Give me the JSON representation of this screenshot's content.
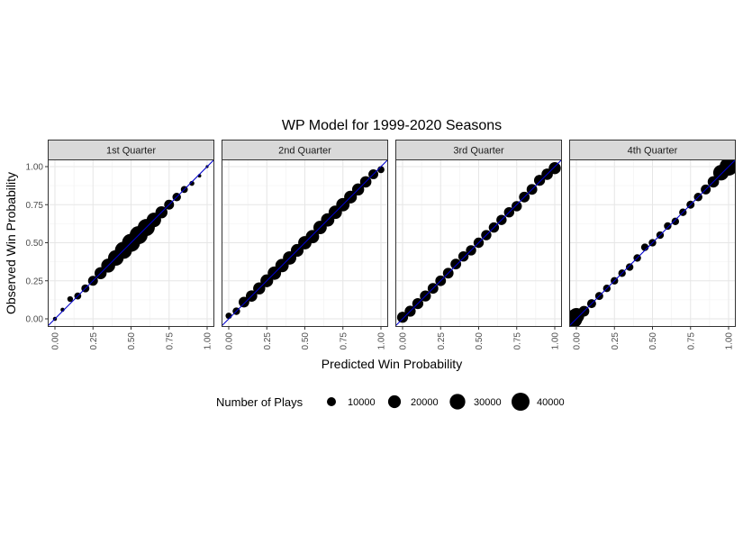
{
  "chart_data": {
    "type": "scatter",
    "title": "WP Model for 1999-2020 Seasons",
    "xlabel": "Predicted Win Probability",
    "ylabel": "Observed Win Probability",
    "xlim": [
      0,
      1
    ],
    "ylim": [
      0,
      1
    ],
    "x_ticks": [
      "0.00",
      "0.25",
      "0.50",
      "0.75",
      "1.00"
    ],
    "y_ticks": [
      "0.00",
      "0.25",
      "0.50",
      "0.75",
      "1.00"
    ],
    "grid": true,
    "reference_line": "y = x",
    "reference_line_color": "#0000cc",
    "point_color": "#000000",
    "legend": {
      "title": "Number of Plays",
      "placement": "bottom",
      "entries": [
        {
          "label": "10000",
          "value": 10000
        },
        {
          "label": "20000",
          "value": 20000
        },
        {
          "label": "30000",
          "value": 30000
        },
        {
          "label": "40000",
          "value": 40000
        }
      ]
    },
    "facets": [
      {
        "label": "1st Quarter",
        "points": [
          {
            "x": 0.0,
            "y": 0.0,
            "n": 2000
          },
          {
            "x": 0.05,
            "y": 0.06,
            "n": 2000
          },
          {
            "x": 0.1,
            "y": 0.13,
            "n": 4000
          },
          {
            "x": 0.15,
            "y": 0.15,
            "n": 6000
          },
          {
            "x": 0.2,
            "y": 0.2,
            "n": 8000
          },
          {
            "x": 0.25,
            "y": 0.25,
            "n": 12000
          },
          {
            "x": 0.3,
            "y": 0.3,
            "n": 18000
          },
          {
            "x": 0.35,
            "y": 0.35,
            "n": 24000
          },
          {
            "x": 0.4,
            "y": 0.4,
            "n": 30000
          },
          {
            "x": 0.45,
            "y": 0.45,
            "n": 36000
          },
          {
            "x": 0.5,
            "y": 0.5,
            "n": 40000
          },
          {
            "x": 0.55,
            "y": 0.55,
            "n": 40000
          },
          {
            "x": 0.6,
            "y": 0.6,
            "n": 36000
          },
          {
            "x": 0.65,
            "y": 0.65,
            "n": 26000
          },
          {
            "x": 0.7,
            "y": 0.7,
            "n": 18000
          },
          {
            "x": 0.75,
            "y": 0.75,
            "n": 12000
          },
          {
            "x": 0.8,
            "y": 0.8,
            "n": 9000
          },
          {
            "x": 0.85,
            "y": 0.85,
            "n": 6000
          },
          {
            "x": 0.9,
            "y": 0.89,
            "n": 3000
          },
          {
            "x": 0.95,
            "y": 0.94,
            "n": 1500
          },
          {
            "x": 1.0,
            "y": 1.0,
            "n": 1000
          }
        ]
      },
      {
        "label": "2nd Quarter",
        "points": [
          {
            "x": 0.0,
            "y": 0.02,
            "n": 5000
          },
          {
            "x": 0.05,
            "y": 0.05,
            "n": 7000
          },
          {
            "x": 0.1,
            "y": 0.11,
            "n": 14000
          },
          {
            "x": 0.15,
            "y": 0.15,
            "n": 16000
          },
          {
            "x": 0.2,
            "y": 0.2,
            "n": 18000
          },
          {
            "x": 0.25,
            "y": 0.25,
            "n": 20000
          },
          {
            "x": 0.3,
            "y": 0.3,
            "n": 22000
          },
          {
            "x": 0.35,
            "y": 0.35,
            "n": 22000
          },
          {
            "x": 0.4,
            "y": 0.4,
            "n": 22000
          },
          {
            "x": 0.45,
            "y": 0.45,
            "n": 20000
          },
          {
            "x": 0.5,
            "y": 0.5,
            "n": 22000
          },
          {
            "x": 0.55,
            "y": 0.54,
            "n": 22000
          },
          {
            "x": 0.6,
            "y": 0.6,
            "n": 22000
          },
          {
            "x": 0.65,
            "y": 0.65,
            "n": 22000
          },
          {
            "x": 0.7,
            "y": 0.7,
            "n": 22000
          },
          {
            "x": 0.75,
            "y": 0.75,
            "n": 22000
          },
          {
            "x": 0.8,
            "y": 0.8,
            "n": 20000
          },
          {
            "x": 0.85,
            "y": 0.85,
            "n": 18000
          },
          {
            "x": 0.9,
            "y": 0.9,
            "n": 16000
          },
          {
            "x": 0.95,
            "y": 0.95,
            "n": 12000
          },
          {
            "x": 1.0,
            "y": 0.98,
            "n": 6000
          }
        ]
      },
      {
        "label": "3rd Quarter",
        "points": [
          {
            "x": 0.0,
            "y": 0.01,
            "n": 15000
          },
          {
            "x": 0.05,
            "y": 0.05,
            "n": 15000
          },
          {
            "x": 0.1,
            "y": 0.1,
            "n": 15000
          },
          {
            "x": 0.15,
            "y": 0.15,
            "n": 15000
          },
          {
            "x": 0.2,
            "y": 0.2,
            "n": 14000
          },
          {
            "x": 0.25,
            "y": 0.25,
            "n": 14000
          },
          {
            "x": 0.3,
            "y": 0.3,
            "n": 14000
          },
          {
            "x": 0.35,
            "y": 0.36,
            "n": 14000
          },
          {
            "x": 0.4,
            "y": 0.41,
            "n": 13000
          },
          {
            "x": 0.45,
            "y": 0.45,
            "n": 13000
          },
          {
            "x": 0.5,
            "y": 0.5,
            "n": 13000
          },
          {
            "x": 0.55,
            "y": 0.55,
            "n": 13000
          },
          {
            "x": 0.6,
            "y": 0.6,
            "n": 13000
          },
          {
            "x": 0.65,
            "y": 0.65,
            "n": 13000
          },
          {
            "x": 0.7,
            "y": 0.7,
            "n": 13000
          },
          {
            "x": 0.75,
            "y": 0.74,
            "n": 13000
          },
          {
            "x": 0.8,
            "y": 0.8,
            "n": 14000
          },
          {
            "x": 0.85,
            "y": 0.85,
            "n": 14000
          },
          {
            "x": 0.9,
            "y": 0.91,
            "n": 15000
          },
          {
            "x": 0.95,
            "y": 0.95,
            "n": 16000
          },
          {
            "x": 1.0,
            "y": 0.99,
            "n": 18000
          }
        ]
      },
      {
        "label": "4th Quarter",
        "points": [
          {
            "x": -0.02,
            "y": 0.0,
            "n": 40000
          },
          {
            "x": 0.0,
            "y": 0.02,
            "n": 30000
          },
          {
            "x": 0.05,
            "y": 0.05,
            "n": 14000
          },
          {
            "x": 0.1,
            "y": 0.1,
            "n": 10000
          },
          {
            "x": 0.15,
            "y": 0.15,
            "n": 8000
          },
          {
            "x": 0.2,
            "y": 0.2,
            "n": 7000
          },
          {
            "x": 0.25,
            "y": 0.25,
            "n": 7000
          },
          {
            "x": 0.3,
            "y": 0.3,
            "n": 7000
          },
          {
            "x": 0.35,
            "y": 0.34,
            "n": 7000
          },
          {
            "x": 0.4,
            "y": 0.4,
            "n": 7000
          },
          {
            "x": 0.45,
            "y": 0.47,
            "n": 7000
          },
          {
            "x": 0.5,
            "y": 0.5,
            "n": 7000
          },
          {
            "x": 0.55,
            "y": 0.55,
            "n": 7000
          },
          {
            "x": 0.6,
            "y": 0.61,
            "n": 7000
          },
          {
            "x": 0.65,
            "y": 0.64,
            "n": 7000
          },
          {
            "x": 0.7,
            "y": 0.7,
            "n": 7000
          },
          {
            "x": 0.75,
            "y": 0.75,
            "n": 8000
          },
          {
            "x": 0.8,
            "y": 0.8,
            "n": 9000
          },
          {
            "x": 0.85,
            "y": 0.85,
            "n": 12000
          },
          {
            "x": 0.9,
            "y": 0.9,
            "n": 16000
          },
          {
            "x": 0.95,
            "y": 0.96,
            "n": 30000
          },
          {
            "x": 1.0,
            "y": 1.0,
            "n": 40000
          }
        ]
      }
    ]
  }
}
